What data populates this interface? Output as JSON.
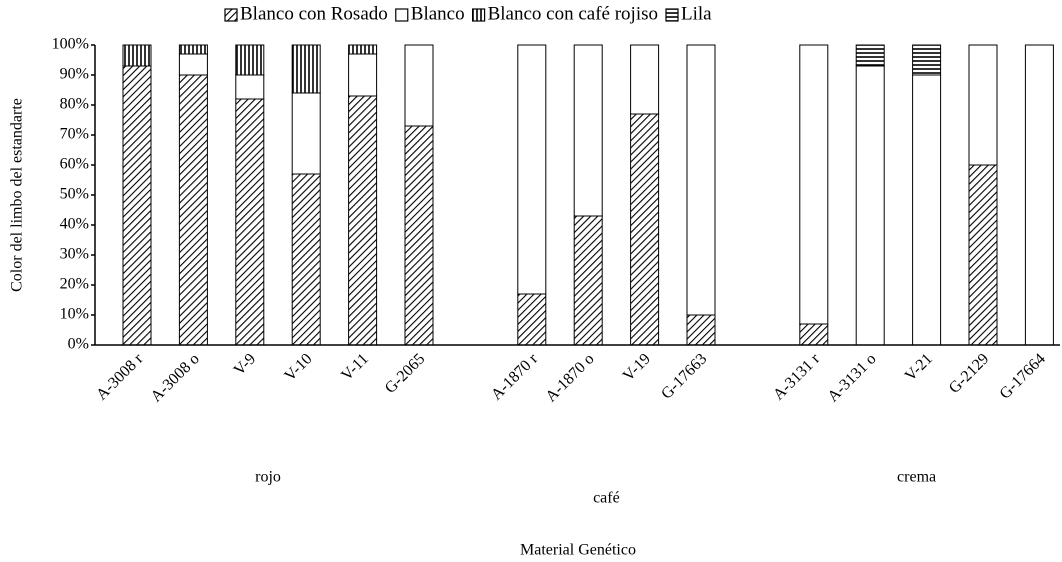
{
  "chart_data": {
    "type": "stacked_bar",
    "y_label": "Color del limbo del estandarte",
    "x_label": "Material Genético",
    "categories": [
      "A-3008 r",
      "A-3008 o",
      "V-9",
      "V-10",
      "V-11",
      "G-2065",
      null,
      "A-1870 r",
      "A-1870 o",
      "V-19",
      "G-17663",
      null,
      "A-3131 r",
      "A-3131 o",
      "V-21",
      "G-2129",
      "G-17664"
    ],
    "groups": [
      {
        "label": "rojo",
        "from": 0,
        "to": 5
      },
      {
        "label": "café",
        "from": 7,
        "to": 10
      },
      {
        "label": "crema",
        "from": 12,
        "to": 16
      }
    ],
    "series": [
      {
        "name": "Blanco con Rosado",
        "color": "#000000",
        "pattern": "diagonal",
        "values": [
          93,
          90,
          82,
          57,
          83,
          73,
          null,
          17,
          43,
          77,
          10,
          null,
          7,
          0,
          0,
          60,
          0
        ]
      },
      {
        "name": "Blanco",
        "color": "#000000",
        "pattern": "none",
        "values": [
          0,
          7,
          8,
          27,
          14,
          27,
          null,
          83,
          57,
          23,
          90,
          null,
          93,
          93,
          90,
          40,
          100
        ]
      },
      {
        "name": "Blanco con café rojiso",
        "color": "#000000",
        "pattern": "vertical",
        "values": [
          7,
          3,
          10,
          16,
          3,
          0,
          null,
          0,
          0,
          0,
          0,
          null,
          0,
          0,
          0,
          0,
          0
        ]
      },
      {
        "name": "Lila",
        "color": "#000000",
        "pattern": "horizontal",
        "values": [
          0,
          0,
          0,
          0,
          0,
          0,
          null,
          0,
          0,
          0,
          0,
          null,
          0,
          7,
          10,
          0,
          0
        ]
      }
    ],
    "ylim": [
      0,
      100
    ],
    "yticks": [
      {
        "value": 0,
        "label": "0%"
      },
      {
        "value": 10,
        "label": "10%"
      },
      {
        "value": 20,
        "label": "20%"
      },
      {
        "value": 30,
        "label": "30%"
      },
      {
        "value": 40,
        "label": "40%"
      },
      {
        "value": 50,
        "label": "50%"
      },
      {
        "value": 60,
        "label": "60%"
      },
      {
        "value": 70,
        "label": "70%"
      },
      {
        "value": 80,
        "label": "80%"
      },
      {
        "value": 90,
        "label": "90%"
      },
      {
        "value": 100,
        "label": "100%"
      }
    ],
    "legend": "top"
  }
}
